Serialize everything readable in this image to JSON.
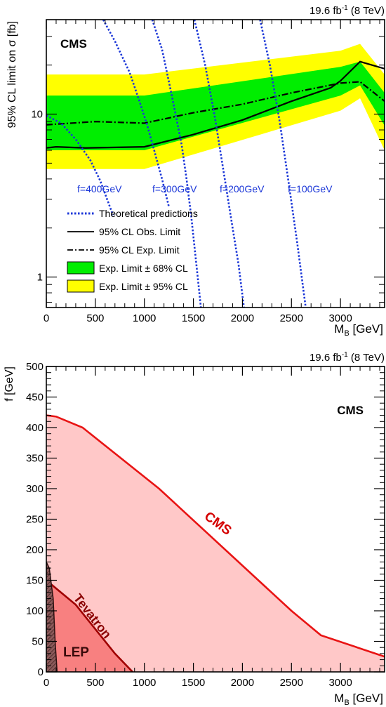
{
  "chart_data": [
    {
      "type": "line",
      "header": {
        "lumi": "19.6 fb",
        "sup": "-1",
        "energy": " (8 TeV)"
      },
      "cms_label": "CMS",
      "xlabel": "M",
      "xlabel_sub": "B",
      "xlabel_unit": " [GeV]",
      "ylabel": "95% CL limit on σ [fb]",
      "xlim": [
        0,
        3450
      ],
      "ylim": [
        0.65,
        38
      ],
      "yscale": "log",
      "x_ticks": [
        "0",
        "500",
        "1000",
        "1500",
        "2000",
        "2500",
        "3000"
      ],
      "y_ticks": [
        "1",
        "10"
      ],
      "band_x": [
        0,
        1000,
        3000,
        3200,
        3450
      ],
      "band95_lo": [
        4.6,
        4.6,
        10.5,
        12.5,
        6.0
      ],
      "band95_hi": [
        17.5,
        17.5,
        24.5,
        27.0,
        17.5
      ],
      "band68_lo": [
        6.0,
        6.0,
        13.0,
        15.0,
        8.5
      ],
      "band68_hi": [
        13.0,
        13.0,
        19.5,
        21.0,
        13.5
      ],
      "series": [
        {
          "name": "95% CL Obs. Limit",
          "style": "solid",
          "color": "#000000",
          "x": [
            0,
            100,
            400,
            1000,
            1500,
            2000,
            2500,
            2900,
            3000,
            3200,
            3450
          ],
          "y": [
            6.2,
            6.3,
            6.2,
            6.3,
            7.5,
            9.2,
            12.0,
            14.5,
            16.0,
            21.0,
            19.0
          ]
        },
        {
          "name": "95% CL Exp. Limit",
          "style": "dashdot",
          "color": "#000000",
          "x": [
            0,
            500,
            1000,
            1500,
            2000,
            2500,
            3000,
            3200,
            3450
          ],
          "y": [
            8.6,
            9.0,
            8.8,
            10.2,
            11.5,
            13.5,
            15.5,
            15.8,
            12.0
          ]
        }
      ],
      "theory": [
        {
          "label": "f=400GeV",
          "x": [
            0,
            150,
            300,
            450,
            550,
            620,
            680
          ],
          "y": [
            9.8,
            8.8,
            7.0,
            5.2,
            3.9,
            3.0,
            2.4
          ]
        },
        {
          "label": "f=300GeV",
          "x": [
            580,
            700,
            850,
            950,
            1030,
            1100,
            1180,
            1250
          ],
          "y": [
            38,
            28,
            18,
            12,
            8.5,
            6.0,
            4.0,
            2.7
          ]
        },
        {
          "label": "f=200GeV",
          "x": [
            1080,
            1180,
            1280,
            1380,
            1430,
            1480,
            1530,
            1580
          ],
          "y": [
            38,
            25,
            13,
            6.5,
            4.0,
            2.3,
            1.2,
            0.62
          ]
        },
        {
          "label": "f=100GeV",
          "x": [
            2180,
            2280,
            2380,
            2480,
            2560,
            2650
          ],
          "y": [
            38,
            20,
            9.0,
            3.5,
            1.6,
            0.62
          ]
        }
      ],
      "theory_line": {
        "x": [
          1510,
          1620,
          1720,
          1820,
          1900,
          1960,
          2020
        ],
        "y": [
          38,
          20,
          9.5,
          4.0,
          2.0,
          1.2,
          0.62
        ]
      },
      "legend": [
        {
          "label": "Theoretical predictions",
          "kind": "dotted",
          "color": "#1a36d8"
        },
        {
          "label": "95% CL Obs. Limit",
          "kind": "solid",
          "color": "#000000"
        },
        {
          "label": "95% CL Exp. Limit",
          "kind": "dashdot",
          "color": "#000000"
        },
        {
          "label": "Exp. Limit ± 68% CL",
          "kind": "box",
          "color": "#00ee00"
        },
        {
          "label": "Exp. Limit ± 95% CL",
          "kind": "box",
          "color": "#ffff00"
        }
      ],
      "colors": {
        "band68": "#00ee00",
        "band95": "#ffff00",
        "theory": "#1a36d8"
      }
    },
    {
      "type": "area",
      "header": {
        "lumi": "19.6 fb",
        "sup": "-1",
        "energy": " (8 TeV)"
      },
      "cms_label": "CMS",
      "xlabel": "M",
      "xlabel_sub": "B",
      "xlabel_unit": " [GeV]",
      "ylabel": "f [GeV]",
      "xlim": [
        0,
        3450
      ],
      "ylim": [
        0,
        500
      ],
      "x_ticks": [
        "0",
        "500",
        "1000",
        "1500",
        "2000",
        "2500",
        "3000"
      ],
      "y_ticks": [
        "0",
        "50",
        "100",
        "150",
        "200",
        "250",
        "300",
        "350",
        "400",
        "450",
        "500"
      ],
      "regions": [
        {
          "name": "CMS",
          "x": [
            0,
            100,
            370,
            1150,
            2500,
            2800,
            3450
          ],
          "y": [
            420,
            418,
            400,
            300,
            100,
            60,
            25
          ],
          "fill": "#ffc8c8",
          "line": "#e81414"
        },
        {
          "name": "Tevatron",
          "x": [
            0,
            300,
            700,
            880
          ],
          "y": [
            150,
            110,
            30,
            0
          ],
          "fill": "#f88080",
          "line": "#a00000"
        },
        {
          "name": "LEP",
          "x": [
            0,
            30,
            70,
            90,
            110
          ],
          "y": [
            180,
            170,
            120,
            50,
            0
          ],
          "fill": "#885050",
          "line": "#2a1010"
        }
      ]
    }
  ]
}
